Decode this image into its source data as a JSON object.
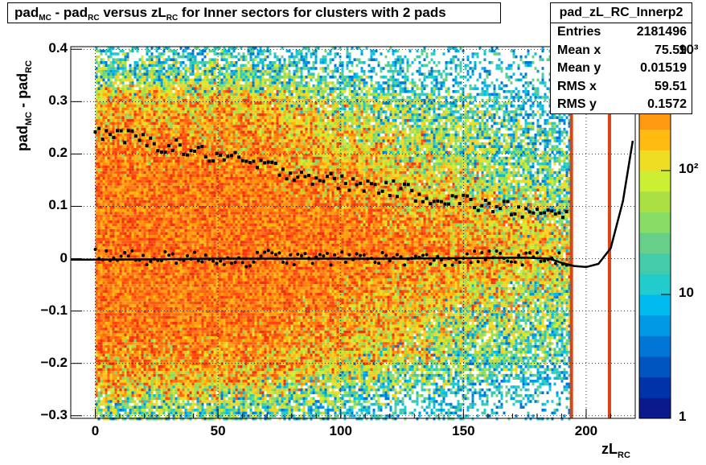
{
  "title": {
    "prefix": "pad",
    "sub1": "MC",
    "mid1": " - pad",
    "sub2": "RC",
    "mid2": " versus zL",
    "sub3": "RC",
    "suffix": " for Inner sectors for clusters with 2 pads"
  },
  "stats": {
    "name": "pad_zL_RC_Innerp2",
    "rows": [
      {
        "label": "Entries",
        "value": "2181496"
      },
      {
        "label": "Mean x",
        "value": "75.59"
      },
      {
        "label": "Mean y",
        "value": "0.01519"
      },
      {
        "label": "RMS x",
        "value": "59.51"
      },
      {
        "label": "RMS y",
        "value": "0.1572"
      }
    ]
  },
  "axes": {
    "ylabel_main": "pad",
    "ylabel_sub1": "MC",
    "ylabel_mid": " - pad",
    "ylabel_sub2": "RC",
    "xlabel_main": "zL",
    "xlabel_sub": "RC"
  },
  "chart_data": {
    "type": "heatmap",
    "xlim": [
      -10,
      220
    ],
    "ylim": [
      -0.305,
      0.405
    ],
    "x_ticks": [
      0,
      50,
      100,
      150,
      200
    ],
    "x_tick_labels": [
      "0",
      "50",
      "100",
      "150",
      "200"
    ],
    "y_ticks": [
      -0.3,
      -0.2,
      -0.1,
      0,
      0.1,
      0.2,
      0.3,
      0.4
    ],
    "y_tick_labels": [
      "−0.3",
      "−0.2",
      "−0.1",
      "0",
      "0.1",
      "0.2",
      "0.3",
      "0.4"
    ],
    "colorbar": {
      "scale": "log",
      "range": [
        1,
        1000
      ],
      "tick_labels": [
        "1",
        "10",
        "10²",
        "10³"
      ],
      "colors": [
        "#0a1a8c",
        "#0033a8",
        "#0055c0",
        "#0077d6",
        "#0099e6",
        "#00bbee",
        "#22cccc",
        "#44ccaa",
        "#66d088",
        "#88dd66",
        "#aae044",
        "#ccee33",
        "#eedd22",
        "#ffbb11",
        "#ff9911",
        "#ff7711",
        "#ff5511",
        "#ee3311"
      ]
    },
    "grid": true,
    "series": [
      {
        "name": "upper",
        "x": [
          0,
          10,
          20,
          30,
          40,
          50,
          60,
          70,
          80,
          90,
          100,
          110,
          120,
          130,
          140,
          150,
          160,
          170,
          180,
          190
        ],
        "y": [
          0.245,
          0.235,
          0.225,
          0.215,
          0.205,
          0.195,
          0.185,
          0.175,
          0.165,
          0.155,
          0.145,
          0.14,
          0.135,
          0.125,
          0.115,
          0.11,
          0.1,
          0.095,
          0.085,
          0.08
        ]
      },
      {
        "name": "lower",
        "x": [
          0,
          10,
          20,
          30,
          40,
          50,
          60,
          70,
          80,
          90,
          100,
          110,
          120,
          130,
          140,
          150,
          160,
          170,
          180,
          190
        ],
        "y": [
          0.01,
          0.005,
          0.0,
          0.005,
          0.0,
          0.0,
          -0.005,
          0.005,
          0.0,
          0.0,
          0.0,
          0.005,
          0.0,
          0.0,
          -0.005,
          0.0,
          0.005,
          0.0,
          0.0,
          0.0
        ]
      }
    ],
    "fit_curve": {
      "x": [
        -10,
        0,
        25,
        50,
        75,
        100,
        125,
        150,
        175,
        185,
        190,
        195,
        200,
        205,
        210,
        215,
        219
      ],
      "y": [
        -0.002,
        -0.002,
        -0.001,
        0.0,
        0.0,
        0.0,
        0.0,
        0.001,
        0.002,
        0.0,
        -0.008,
        -0.014,
        -0.016,
        -0.01,
        0.02,
        0.11,
        0.225
      ]
    }
  }
}
